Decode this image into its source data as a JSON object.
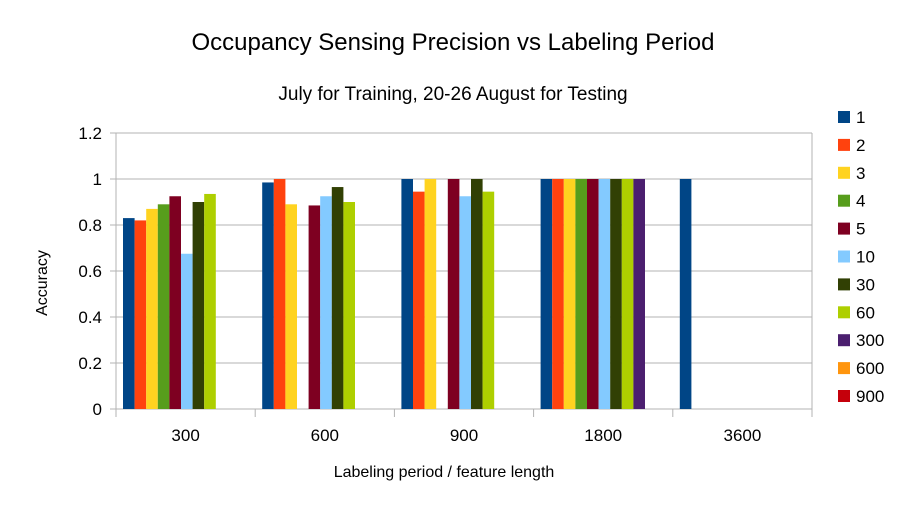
{
  "chart_data": {
    "type": "bar",
    "title": "Occupancy Sensing Precision vs Labeling Period",
    "subtitle": "July for Training, 20-26 August for Testing",
    "xlabel": "Labeling period / feature length",
    "ylabel": "Accuracy",
    "ylim": [
      0,
      1.2
    ],
    "yticks": [
      "0",
      "0.2",
      "0.4",
      "0.6",
      "0.8",
      "1",
      "1.2"
    ],
    "grid": true,
    "legend": "right",
    "categories": [
      "300",
      "600",
      "900",
      "1800",
      "3600"
    ],
    "series": [
      {
        "name": "1",
        "color": "#004586",
        "values": [
          0.83,
          0.985,
          1.0,
          1.0,
          1.0
        ]
      },
      {
        "name": "2",
        "color": "#ff420e",
        "values": [
          0.82,
          1.0,
          0.945,
          1.0,
          null
        ]
      },
      {
        "name": "3",
        "color": "#ffd320",
        "values": [
          0.87,
          0.89,
          1.0,
          1.0,
          null
        ]
      },
      {
        "name": "4",
        "color": "#579d1c",
        "values": [
          0.89,
          null,
          null,
          1.0,
          null
        ]
      },
      {
        "name": "5",
        "color": "#7e0021",
        "values": [
          0.925,
          0.885,
          1.0,
          1.0,
          null
        ]
      },
      {
        "name": "10",
        "color": "#83caff",
        "values": [
          0.675,
          0.925,
          0.925,
          1.0,
          null
        ]
      },
      {
        "name": "30",
        "color": "#314004",
        "values": [
          0.9,
          0.965,
          1.0,
          1.0,
          null
        ]
      },
      {
        "name": "60",
        "color": "#aecf00",
        "values": [
          0.935,
          0.9,
          0.945,
          1.0,
          null
        ]
      },
      {
        "name": "300",
        "color": "#4b1f6f",
        "values": [
          null,
          null,
          null,
          1.0,
          null
        ]
      },
      {
        "name": "600",
        "color": "#ff950e",
        "values": [
          null,
          null,
          null,
          null,
          null
        ]
      },
      {
        "name": "900",
        "color": "#c5000b",
        "values": [
          null,
          null,
          null,
          null,
          null
        ]
      }
    ]
  }
}
